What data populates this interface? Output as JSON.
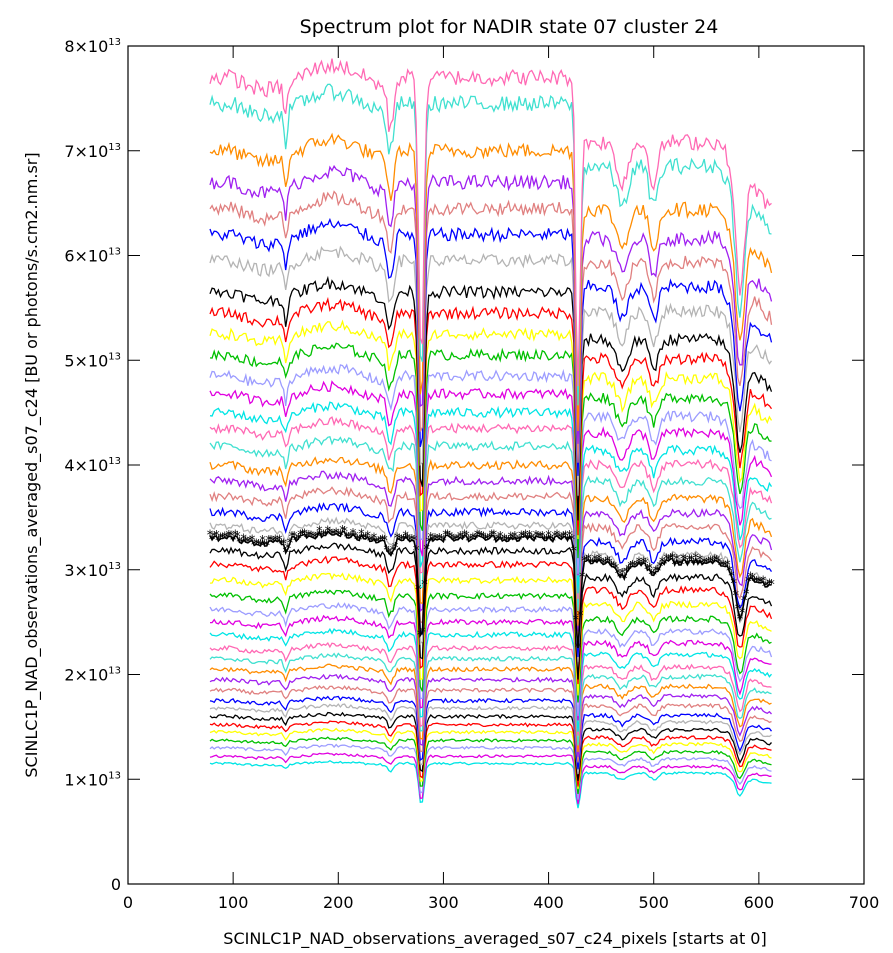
{
  "chart_data": {
    "type": "line",
    "title": "Spectrum plot for NADIR state 07 cluster 24",
    "xlabel": "SCINLC1P_NAD_observations_averaged_s07_c24_pixels [starts at 0]",
    "ylabel": "SCINLC1P_NAD_observations_averaged_s07_c24 [BU or photons/s.cm2.nm.sr]",
    "xlim": [
      0,
      700
    ],
    "ylim": [
      0,
      80000000000000.0
    ],
    "grid": false,
    "x_range": [
      78,
      612
    ],
    "x_ticks": [
      {
        "value": 0,
        "label": "0"
      },
      {
        "value": 100,
        "label": "100"
      },
      {
        "value": 200,
        "label": "200"
      },
      {
        "value": 300,
        "label": "300"
      },
      {
        "value": 400,
        "label": "400"
      },
      {
        "value": 500,
        "label": "500"
      },
      {
        "value": 600,
        "label": "600"
      },
      {
        "value": 700,
        "label": "700"
      }
    ],
    "y_ticks": [
      {
        "value": 0,
        "mant": "0",
        "exp": ""
      },
      {
        "value": 10000000000000.0,
        "mant": "1×10",
        "exp": "13"
      },
      {
        "value": 20000000000000.0,
        "mant": "2×10",
        "exp": "13"
      },
      {
        "value": 30000000000000.0,
        "mant": "3×10",
        "exp": "13"
      },
      {
        "value": 40000000000000.0,
        "mant": "4×10",
        "exp": "13"
      },
      {
        "value": 50000000000000.0,
        "mant": "5×10",
        "exp": "13"
      },
      {
        "value": 60000000000000.0,
        "mant": "6×10",
        "exp": "13"
      },
      {
        "value": 70000000000000.0,
        "mant": "7×10",
        "exp": "13"
      },
      {
        "value": 80000000000000.0,
        "mant": "8×10",
        "exp": "13"
      }
    ],
    "series_levels": [
      11500000000000.0,
      12200000000000.0,
      13000000000000.0,
      13700000000000.0,
      14500000000000.0,
      15200000000000.0,
      16000000000000.0,
      16800000000000.0,
      17500000000000.0,
      18500000000000.0,
      19500000000000.0,
      20500000000000.0,
      21500000000000.0,
      22500000000000.0,
      23800000000000.0,
      25000000000000.0,
      26200000000000.0,
      27500000000000.0,
      29000000000000.0,
      30500000000000.0,
      31800000000000.0,
      34200000000000.0,
      35500000000000.0,
      37000000000000.0,
      38500000000000.0,
      40000000000000.0,
      41800000000000.0,
      43500000000000.0,
      45000000000000.0,
      46800000000000.0,
      48500000000000.0,
      50500000000000.0,
      52500000000000.0,
      54500000000000.0,
      56500000000000.0,
      59500000000000.0,
      62000000000000.0,
      64500000000000.0,
      67000000000000.0,
      70000000000000.0,
      74500000000000.0,
      77000000000000.0
    ],
    "marked_series": {
      "level": 33000000000000.0,
      "color": "#000000",
      "marker": "*"
    },
    "palette": [
      "#00e5e5",
      "#e000e0",
      "#9c9cff",
      "#00c000",
      "#ffff00",
      "#ff0000",
      "#000000",
      "#b4b4b4",
      "#0000ff",
      "#e08080",
      "#a020f0",
      "#ff8c00",
      "#40e0d0",
      "#ff69b4"
    ]
  }
}
